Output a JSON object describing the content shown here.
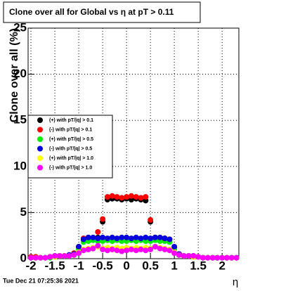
{
  "chart_data": {
    "type": "scatter",
    "title": "Clone  over all for Global vs   η at pT > 0.11",
    "y_label": "Clone  over all (%)",
    "x_label": "η",
    "timestamp": "Tue Dec 21 07:25:36 2021",
    "x": [
      -2.0,
      -1.9,
      -1.8,
      -1.7,
      -1.6,
      -1.5,
      -1.4,
      -1.3,
      -1.2,
      -1.1,
      -1.0,
      -0.9,
      -0.8,
      -0.7,
      -0.6,
      -0.5,
      -0.4,
      -0.3,
      -0.2,
      -0.1,
      0.0,
      0.1,
      0.2,
      0.3,
      0.4,
      0.5,
      0.6,
      0.7,
      0.8,
      0.9,
      1.0,
      1.1,
      1.2,
      1.3,
      1.4,
      1.5,
      1.6,
      1.7,
      1.8,
      1.9,
      2.0,
      2.1,
      2.2,
      2.3
    ],
    "series": [
      {
        "name": "(+) with pT/|q| > 0.1",
        "color": "#000000",
        "values": [
          0.1,
          0.1,
          0.1,
          0.1,
          0.2,
          0.3,
          0.3,
          0.3,
          0.3,
          0.5,
          1.2,
          2.1,
          2.2,
          2.2,
          2.3,
          4.0,
          6.4,
          6.5,
          6.5,
          6.4,
          6.5,
          6.4,
          6.5,
          6.4,
          6.3,
          4.0,
          2.3,
          2.2,
          2.2,
          2.1,
          1.2,
          0.5,
          0.3,
          0.3,
          0.3,
          0.2,
          0.1,
          0.1,
          0.1,
          0.1,
          0.1,
          0.1,
          0.1,
          0.1
        ]
      },
      {
        "name": "(-) with pT/|q| > 0.1",
        "color": "#ff0000",
        "values": [
          0.2,
          0.2,
          0.1,
          0.1,
          0.2,
          0.2,
          0.3,
          0.3,
          0.4,
          0.6,
          1.3,
          2.2,
          2.3,
          2.2,
          2.9,
          4.3,
          6.7,
          6.8,
          6.7,
          6.6,
          6.7,
          6.8,
          6.7,
          6.6,
          6.7,
          4.2,
          2.3,
          2.2,
          2.2,
          2.1,
          1.1,
          0.5,
          0.3,
          0.3,
          0.2,
          0.2,
          0.1,
          0.1,
          0.1,
          0.1,
          0.1,
          0.1,
          0.1,
          0.1
        ]
      },
      {
        "name": "(+) with pT/|q| > 0.5",
        "color": "#00ee00",
        "values": [
          0.1,
          0.1,
          0.1,
          0.1,
          0.1,
          0.2,
          0.3,
          0.3,
          0.3,
          0.4,
          1.0,
          1.8,
          1.9,
          2.0,
          1.9,
          1.9,
          2.0,
          1.9,
          2.0,
          1.9,
          1.9,
          2.0,
          1.9,
          2.0,
          1.9,
          1.9,
          2.0,
          1.9,
          1.9,
          1.8,
          1.0,
          0.4,
          0.3,
          0.3,
          0.2,
          0.2,
          0.1,
          0.1,
          0.1,
          0.1,
          0.1,
          0.1,
          0.1,
          0.1
        ]
      },
      {
        "name": "(-) with pT/|q| > 0.5",
        "color": "#0000dd",
        "values": [
          0.1,
          0.1,
          0.1,
          0.1,
          0.2,
          0.3,
          0.3,
          0.3,
          0.4,
          0.5,
          1.3,
          2.1,
          2.3,
          2.3,
          2.2,
          2.3,
          2.2,
          2.3,
          2.2,
          2.3,
          2.3,
          2.2,
          2.3,
          2.2,
          2.3,
          2.2,
          2.3,
          2.3,
          2.2,
          2.1,
          1.3,
          0.5,
          0.3,
          0.3,
          0.3,
          0.2,
          0.1,
          0.1,
          0.1,
          0.1,
          0.1,
          0.1,
          0.1,
          0.1
        ]
      },
      {
        "name": "(+) with pT/|q| > 1.0",
        "color": "#ffff00",
        "values": [
          0.1,
          0.1,
          0.1,
          0.1,
          0.2,
          0.2,
          0.3,
          0.3,
          0.3,
          0.4,
          0.7,
          1.0,
          1.1,
          1.2,
          1.3,
          1.1,
          1.2,
          1.1,
          1.2,
          1.1,
          1.2,
          1.1,
          1.2,
          1.1,
          1.2,
          1.1,
          1.3,
          1.2,
          1.1,
          1.0,
          0.7,
          0.4,
          0.3,
          0.3,
          0.2,
          0.2,
          0.1,
          0.1,
          0.1,
          0.1,
          0.1,
          0.1,
          0.1,
          0.1
        ]
      },
      {
        "name": "(-) with pT/|q| > 1.0",
        "color": "#ff00ff",
        "values": [
          0.1,
          0.1,
          0.1,
          0.1,
          0.2,
          0.3,
          0.3,
          0.3,
          0.3,
          0.4,
          0.6,
          0.9,
          1.0,
          1.1,
          1.4,
          1.0,
          0.9,
          1.0,
          0.9,
          0.8,
          0.9,
          1.0,
          0.9,
          1.0,
          0.9,
          1.0,
          1.3,
          1.1,
          1.0,
          0.9,
          0.6,
          0.4,
          0.3,
          0.3,
          0.3,
          0.2,
          0.1,
          0.1,
          0.1,
          0.1,
          0.1,
          0.1,
          0.1,
          0.1
        ]
      }
    ],
    "xlim": [
      -2.06,
      2.35
    ],
    "ylim": [
      0,
      25
    ],
    "xticks": [
      -2,
      -1.5,
      -1,
      -0.5,
      0,
      0.5,
      1,
      1.5,
      2
    ],
    "yticks": [
      0,
      5,
      10,
      15,
      20,
      25
    ],
    "grid": true,
    "legend": "left"
  }
}
